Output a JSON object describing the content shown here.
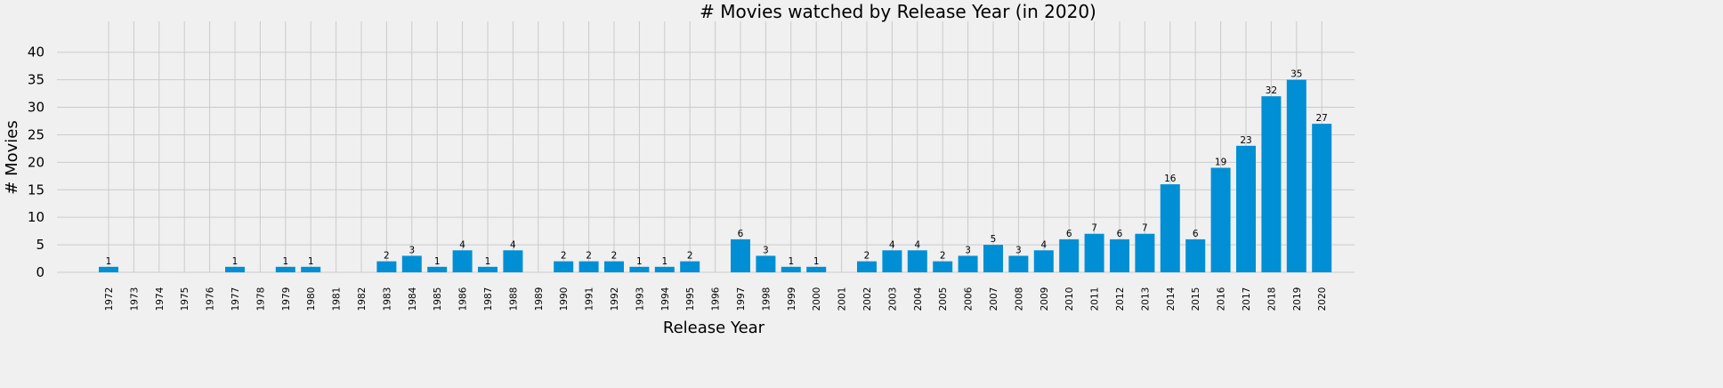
{
  "chart_data": {
    "type": "bar",
    "title": "# Movies watched by Release Year (in 2020)",
    "xlabel": "Release Year",
    "ylabel": "# Movies",
    "ylim": [
      0,
      44
    ],
    "yticks": [
      0,
      5,
      10,
      15,
      20,
      25,
      30,
      35,
      40
    ],
    "grid": true,
    "bar_color": "#008fd5",
    "background": "#f0f0f0",
    "grid_color": "#cbcbcb",
    "categories": [
      "1972",
      "1973",
      "1974",
      "1975",
      "1976",
      "1977",
      "1978",
      "1979",
      "1980",
      "1981",
      "1982",
      "1983",
      "1984",
      "1985",
      "1986",
      "1987",
      "1988",
      "1989",
      "1990",
      "1991",
      "1992",
      "1993",
      "1994",
      "1995",
      "1996",
      "1997",
      "1998",
      "1999",
      "2000",
      "2001",
      "2002",
      "2003",
      "2004",
      "2005",
      "2006",
      "2007",
      "2008",
      "2009",
      "2010",
      "2011",
      "2012",
      "2013",
      "2014",
      "2015",
      "2016",
      "2017",
      "2018",
      "2019",
      "2020"
    ],
    "values": [
      1,
      0,
      0,
      0,
      0,
      1,
      0,
      1,
      1,
      0,
      0,
      2,
      3,
      1,
      4,
      1,
      4,
      0,
      2,
      2,
      2,
      1,
      1,
      2,
      0,
      6,
      3,
      1,
      1,
      0,
      2,
      4,
      4,
      2,
      3,
      5,
      3,
      4,
      6,
      7,
      6,
      7,
      16,
      6,
      19,
      23,
      32,
      35,
      27
    ]
  }
}
